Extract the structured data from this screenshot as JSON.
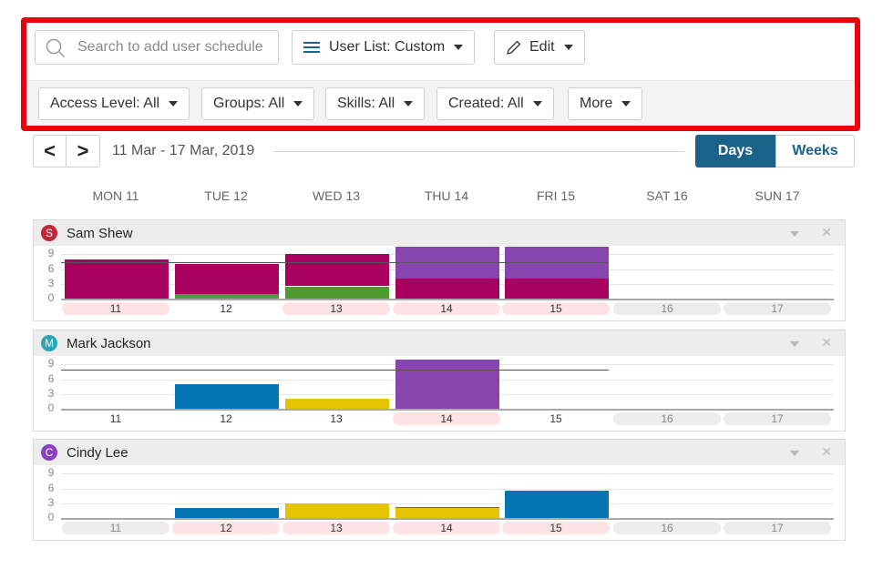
{
  "toolbar": {
    "search_placeholder": "Search to add user schedule",
    "user_list_label": "User List: Custom",
    "edit_label": "Edit",
    "filters": [
      "Access Level: All",
      "Groups: All",
      "Skills: All",
      "Created: All",
      "More"
    ]
  },
  "date_nav": {
    "prev": "<",
    "next": ">",
    "range": "11 Mar - 17 Mar, 2019",
    "view_days": "Days",
    "view_weeks": "Weeks"
  },
  "day_headers": [
    "MON 11",
    "TUE 12",
    "WED 13",
    "THU 14",
    "FRI 15",
    "SAT 16",
    "SUN 17"
  ],
  "y_ticks": [
    "9",
    "6",
    "3",
    "0"
  ],
  "x_ticks": [
    "11",
    "12",
    "13",
    "14",
    "15",
    "16",
    "17"
  ],
  "colors": {
    "accent": "#1b6289",
    "magenta": "#a8005e",
    "green": "#4e9a2e",
    "purple": "#8745ad",
    "blue": "#0676b3",
    "yellow": "#e6c300",
    "day_pink": "#fde3e3",
    "day_grey": "#ececec"
  },
  "users": [
    {
      "initial": "S",
      "name": "Sam Shew",
      "avatar_color": "#c0263a",
      "label_bgs": [
        "pink",
        "white",
        "pink",
        "pink",
        "pink",
        "grey",
        "grey"
      ],
      "ref_line": 7.5,
      "days": [
        [
          {
            "v": 8,
            "c": "magenta"
          }
        ],
        [
          {
            "v": 1,
            "c": "green"
          },
          {
            "v": 6,
            "c": "magenta"
          }
        ],
        [
          {
            "v": 2.5,
            "c": "green"
          },
          {
            "v": 6.5,
            "c": "magenta"
          }
        ],
        [
          {
            "v": 4,
            "c": "magenta"
          },
          {
            "v": 6.5,
            "c": "purple"
          }
        ],
        [
          {
            "v": 4,
            "c": "magenta"
          },
          {
            "v": 6.5,
            "c": "purple"
          }
        ],
        [],
        []
      ]
    },
    {
      "initial": "M",
      "name": "Mark Jackson",
      "avatar_color": "#2aa4b6",
      "label_bgs": [
        "white",
        "white",
        "white",
        "pink",
        "white",
        "grey",
        "grey"
      ],
      "ref_line": 8,
      "days": [
        [],
        [
          {
            "v": 5,
            "c": "blue"
          }
        ],
        [
          {
            "v": 2,
            "c": "yellow"
          }
        ],
        [
          {
            "v": 10,
            "c": "purple"
          }
        ],
        [],
        [],
        []
      ]
    },
    {
      "initial": "C",
      "name": "Cindy Lee",
      "avatar_color": "#8d3fc3",
      "label_bgs": [
        "grey",
        "pink",
        "pink",
        "pink",
        "pink",
        "grey",
        "grey"
      ],
      "ref_line": null,
      "days": [
        [],
        [
          {
            "v": 2,
            "c": "blue"
          }
        ],
        [
          {
            "v": 3,
            "c": "yellow"
          }
        ],
        [
          {
            "v": 2,
            "c": "yellow"
          },
          {
            "v": 0.3,
            "c": "purple"
          }
        ],
        [
          {
            "v": 5.5,
            "c": "blue"
          }
        ],
        [],
        []
      ]
    }
  ]
}
